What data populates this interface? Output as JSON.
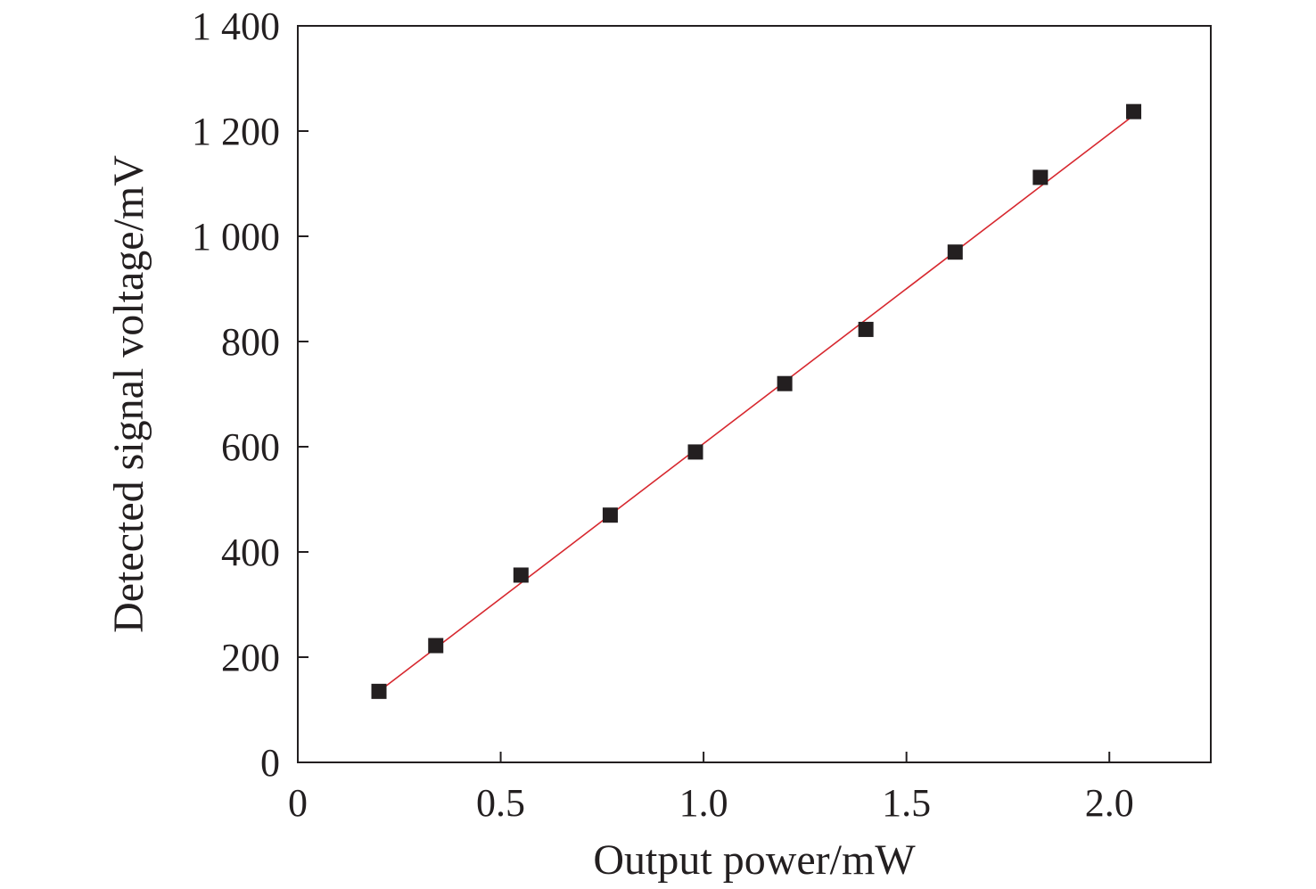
{
  "chart_data": {
    "type": "scatter",
    "title": "",
    "xlabel": "Output power/mW",
    "ylabel": "Detected signal voltage/mV",
    "xlim": [
      0,
      2.25
    ],
    "ylim": [
      0,
      1400
    ],
    "x_ticks": [
      0,
      0.5,
      1.0,
      1.5,
      2.0
    ],
    "x_tick_labels": [
      "0",
      "0.5",
      "1.0",
      "1.5",
      "2.0"
    ],
    "y_ticks": [
      0,
      200,
      400,
      600,
      800,
      1000,
      1200,
      1400
    ],
    "y_tick_labels": [
      "0",
      "200",
      "400",
      "600",
      "800",
      "1 000",
      "1 200",
      "1 400"
    ],
    "grid": false,
    "series": [
      {
        "type": "scatter",
        "marker": "square",
        "color": "#231f20",
        "x": [
          0.2,
          0.34,
          0.55,
          0.77,
          0.98,
          1.2,
          1.4,
          1.62,
          1.83,
          2.06
        ],
        "y": [
          135,
          222,
          356,
          470,
          590,
          720,
          823,
          970,
          1112,
          1237
        ]
      },
      {
        "type": "line",
        "color": "#d7282f",
        "x": [
          0.2,
          2.06
        ],
        "y": [
          135,
          1230
        ]
      }
    ]
  }
}
